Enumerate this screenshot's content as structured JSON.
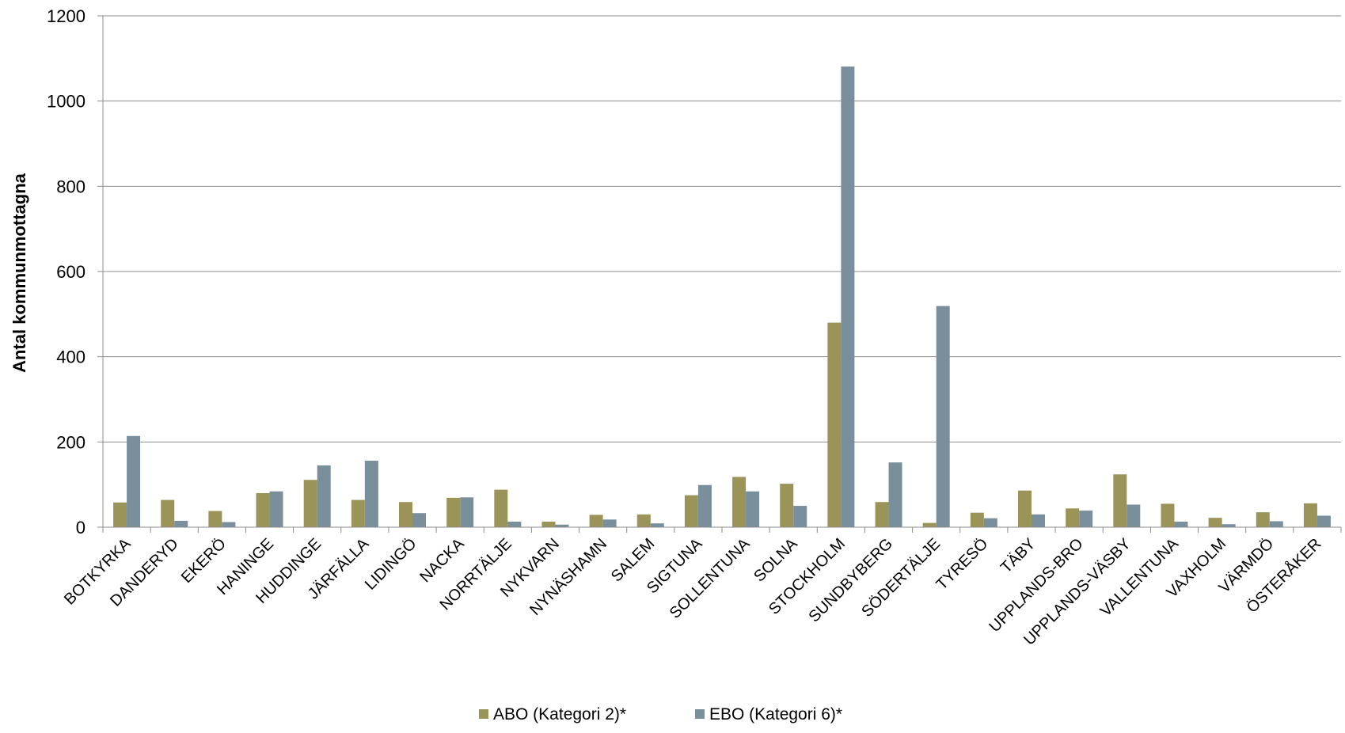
{
  "chart_data": {
    "type": "bar",
    "ylabel": "Antal kommunmottagna",
    "xlabel": "",
    "ylim": [
      0,
      1200
    ],
    "yticks": [
      0,
      200,
      400,
      600,
      800,
      1000,
      1200
    ],
    "grid": true,
    "legend_position": "bottom",
    "categories": [
      "BOTKYRKA",
      "DANDERYD",
      "EKERÖ",
      "HANINGE",
      "HUDDINGE",
      "JÄRFÄLLA",
      "LIDINGÖ",
      "NACKA",
      "NORRTÄLJE",
      "NYKVARN",
      "NYNÄSHAMN",
      "SALEM",
      "SIGTUNA",
      "SOLLENTUNA",
      "SOLNA",
      "STOCKHOLM",
      "SUNDBYBERG",
      "SÖDERTÄLJE",
      "TYRESÖ",
      "TÄBY",
      "UPPLANDS-BRO",
      "UPPLANDS-VÄSBY",
      "VALLENTUNA",
      "VAXHOLM",
      "VÄRMDÖ",
      "ÖSTERÅKER"
    ],
    "series": [
      {
        "name": "ABO (Kategori 2)*",
        "color": "#9b9459",
        "values": [
          58,
          64,
          38,
          80,
          111,
          64,
          59,
          69,
          88,
          13,
          29,
          30,
          75,
          118,
          102,
          480,
          59,
          10,
          34,
          86,
          44,
          124,
          55,
          22,
          35,
          56
        ]
      },
      {
        "name": "EBO (Kategori 6)*",
        "color": "#7a8f9c",
        "values": [
          214,
          15,
          12,
          84,
          145,
          156,
          33,
          70,
          13,
          6,
          18,
          9,
          99,
          84,
          50,
          1081,
          152,
          519,
          21,
          30,
          39,
          53,
          13,
          7,
          14,
          27
        ]
      }
    ]
  }
}
